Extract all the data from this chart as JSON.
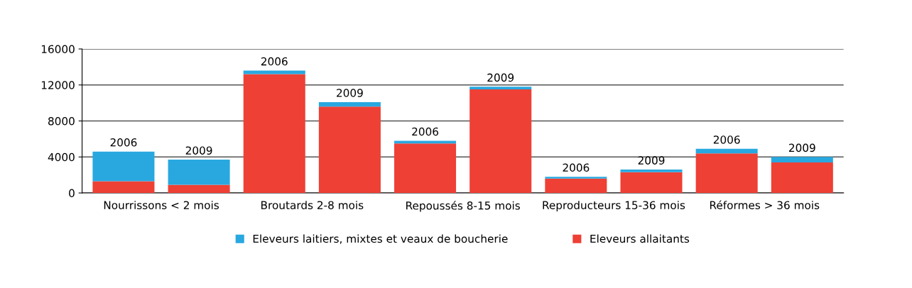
{
  "chart_data": {
    "type": "bar",
    "stacked": true,
    "categories": [
      "Nourrissons < 2 mois",
      null,
      "Broutards 2-8 mois",
      null,
      "Repoussés 8-15 mois",
      null,
      "Reproducteurs 15-36 mois",
      null,
      "Réformes > 36 mois",
      null
    ],
    "series": [
      {
        "name": "Eleveurs allaitants",
        "color": "#ee4035",
        "values": [
          1300,
          900,
          13200,
          9600,
          5500,
          11500,
          1600,
          2300,
          4400,
          3400
        ]
      },
      {
        "name": "Eleveurs laitiers, mixtes et veaux de boucherie",
        "color": "#29a8e0",
        "values": [
          3300,
          2800,
          400,
          500,
          300,
          300,
          200,
          300,
          500,
          600
        ]
      }
    ],
    "annotations": [
      "2006",
      "2009",
      "2006",
      "2009",
      "2006",
      "2009",
      "2006",
      "2009",
      "2006",
      "2009"
    ],
    "ylim": [
      0,
      16000
    ],
    "yticks": [
      0,
      4000,
      8000,
      12000,
      16000
    ],
    "grid": "y",
    "legend": "bottom"
  }
}
